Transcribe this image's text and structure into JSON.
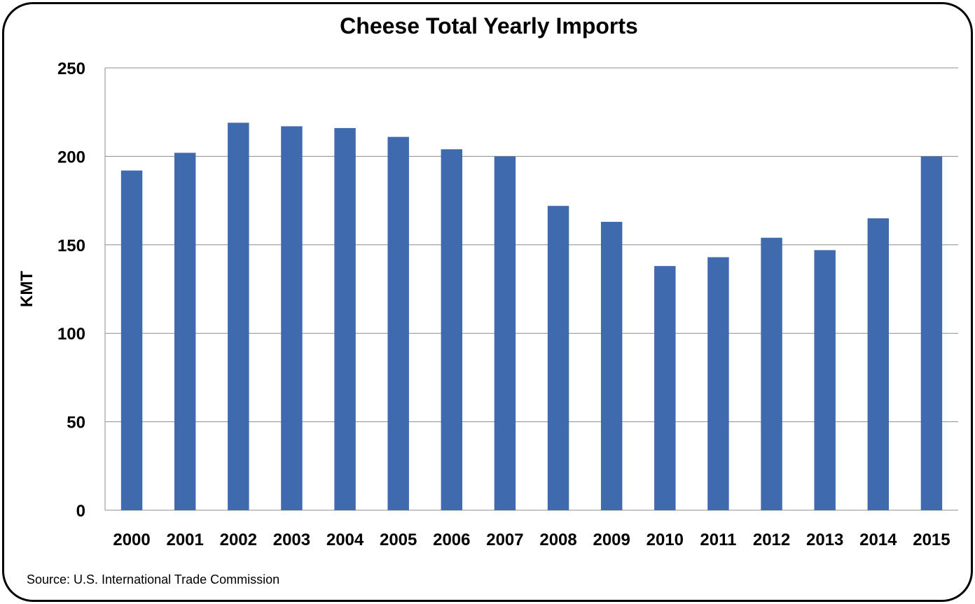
{
  "chart_data": {
    "type": "bar",
    "title": "Cheese Total Yearly Imports",
    "xlabel": "",
    "ylabel": "KMT",
    "ylim": [
      0,
      250
    ],
    "yticks": [
      0,
      50,
      100,
      150,
      200,
      250
    ],
    "grid": true,
    "bar_color": "#3f6aae",
    "categories": [
      "2000",
      "2001",
      "2002",
      "2003",
      "2004",
      "2005",
      "2006",
      "2007",
      "2008",
      "2009",
      "2010",
      "2011",
      "2012",
      "2013",
      "2014",
      "2015"
    ],
    "values": [
      192,
      202,
      219,
      217,
      216,
      211,
      204,
      200,
      172,
      163,
      138,
      143,
      154,
      147,
      165,
      200
    ]
  },
  "footer": {
    "source": "Source:  U.S. International Trade Commission"
  }
}
